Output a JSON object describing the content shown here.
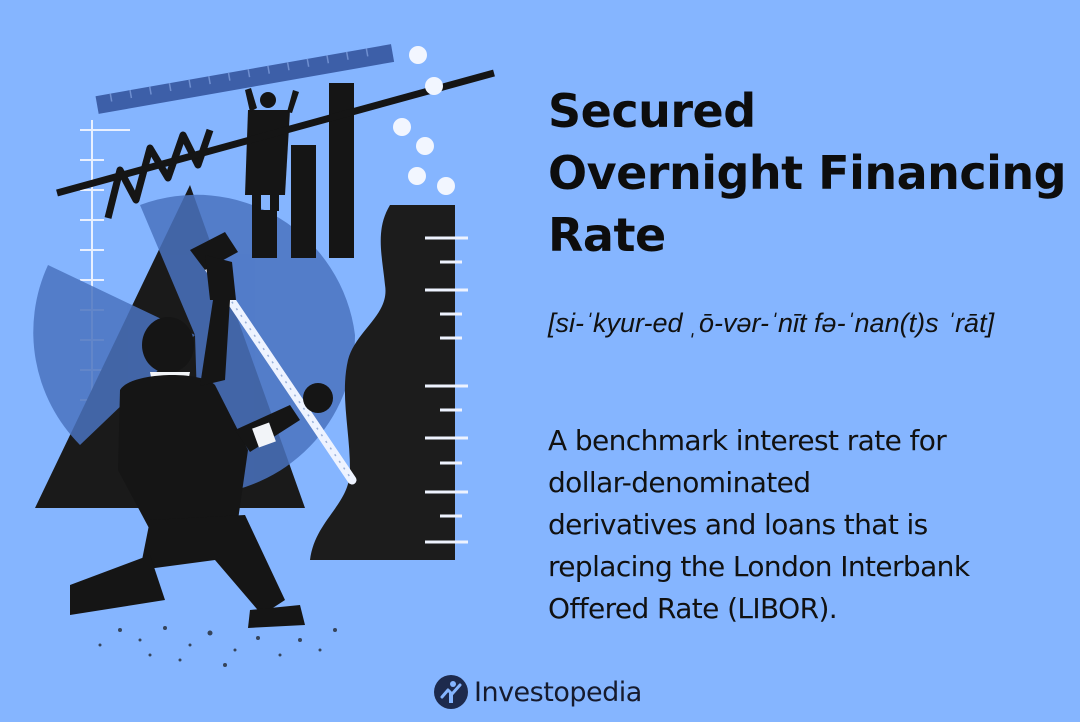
{
  "title_lines": [
    "Secured",
    "Overnight Financing",
    "Rate"
  ],
  "pronunciation": "[si-ˈkyur-ed ˌō-vər-ˈnīt fə-ˈnan(t)s ˈrāt]",
  "definition_lines": [
    "A benchmark interest rate for",
    "dollar-denominated",
    "derivatives and loans that is",
    "replacing the London Interbank",
    "Offered Rate (LIBOR)."
  ],
  "brand": {
    "name": "Investopedia",
    "mark_icon": "investopedia-logo-icon"
  },
  "colors": {
    "background": "#85b5ff",
    "ink": "#111111",
    "accent_blue": "#4a73c0"
  }
}
